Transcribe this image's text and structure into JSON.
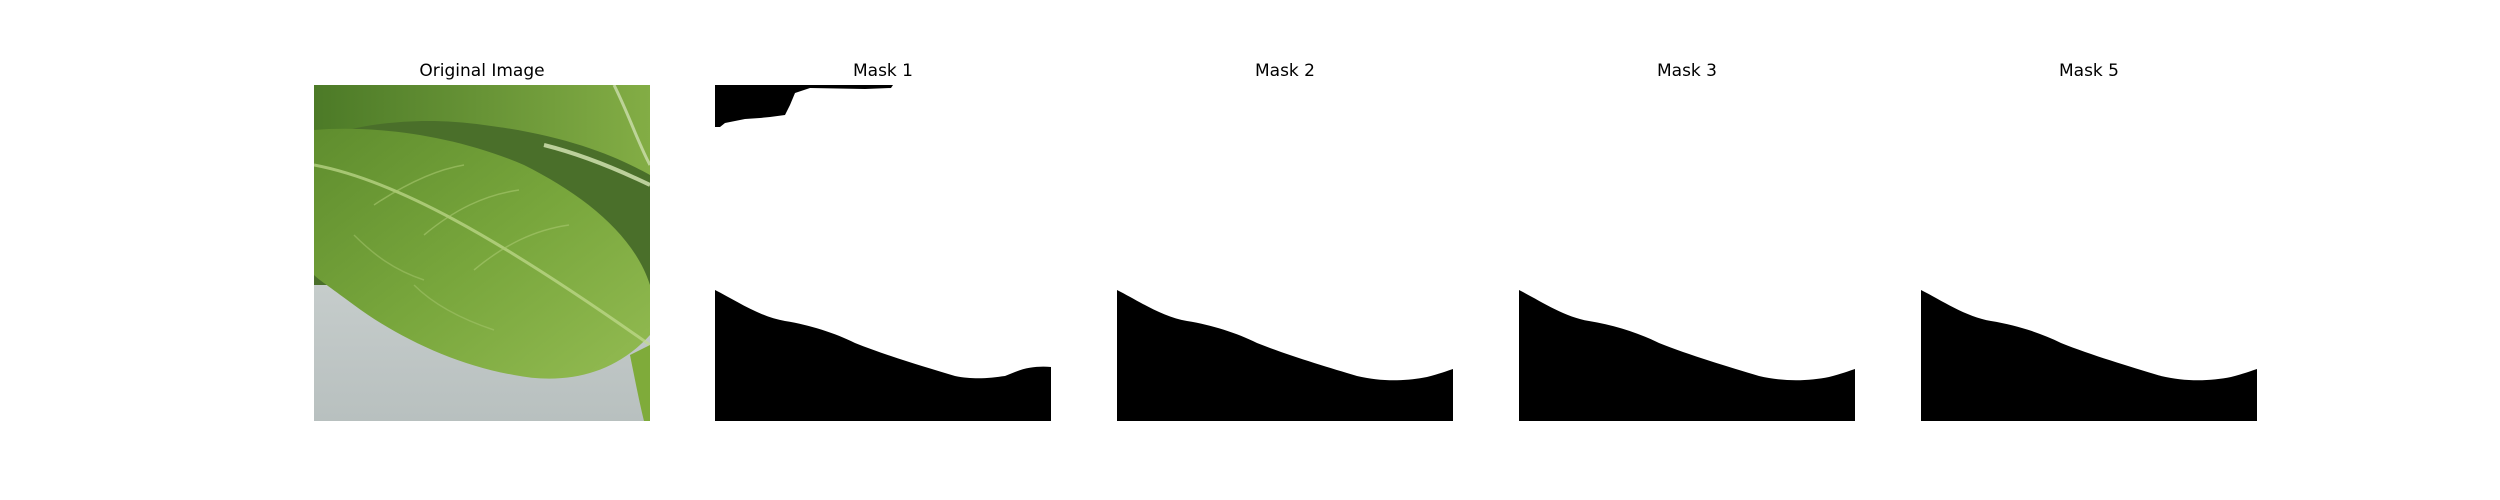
{
  "figure": {
    "panels": [
      {
        "title": "Original Image",
        "kind": "photo",
        "subject": "leaf-photo"
      },
      {
        "title": "Mask 1",
        "kind": "mask"
      },
      {
        "title": "Mask 2",
        "kind": "mask"
      },
      {
        "title": "Mask 3",
        "kind": "mask"
      },
      {
        "title": "Mask 5",
        "kind": "mask"
      }
    ],
    "colors": {
      "mask_fill": "#000000",
      "mask_background": "#ffffff",
      "leaf_dark": "#4f7f28",
      "leaf_mid": "#6f9d3a",
      "leaf_light": "#9cc25a",
      "background_gray": "#c9d0cf"
    }
  }
}
